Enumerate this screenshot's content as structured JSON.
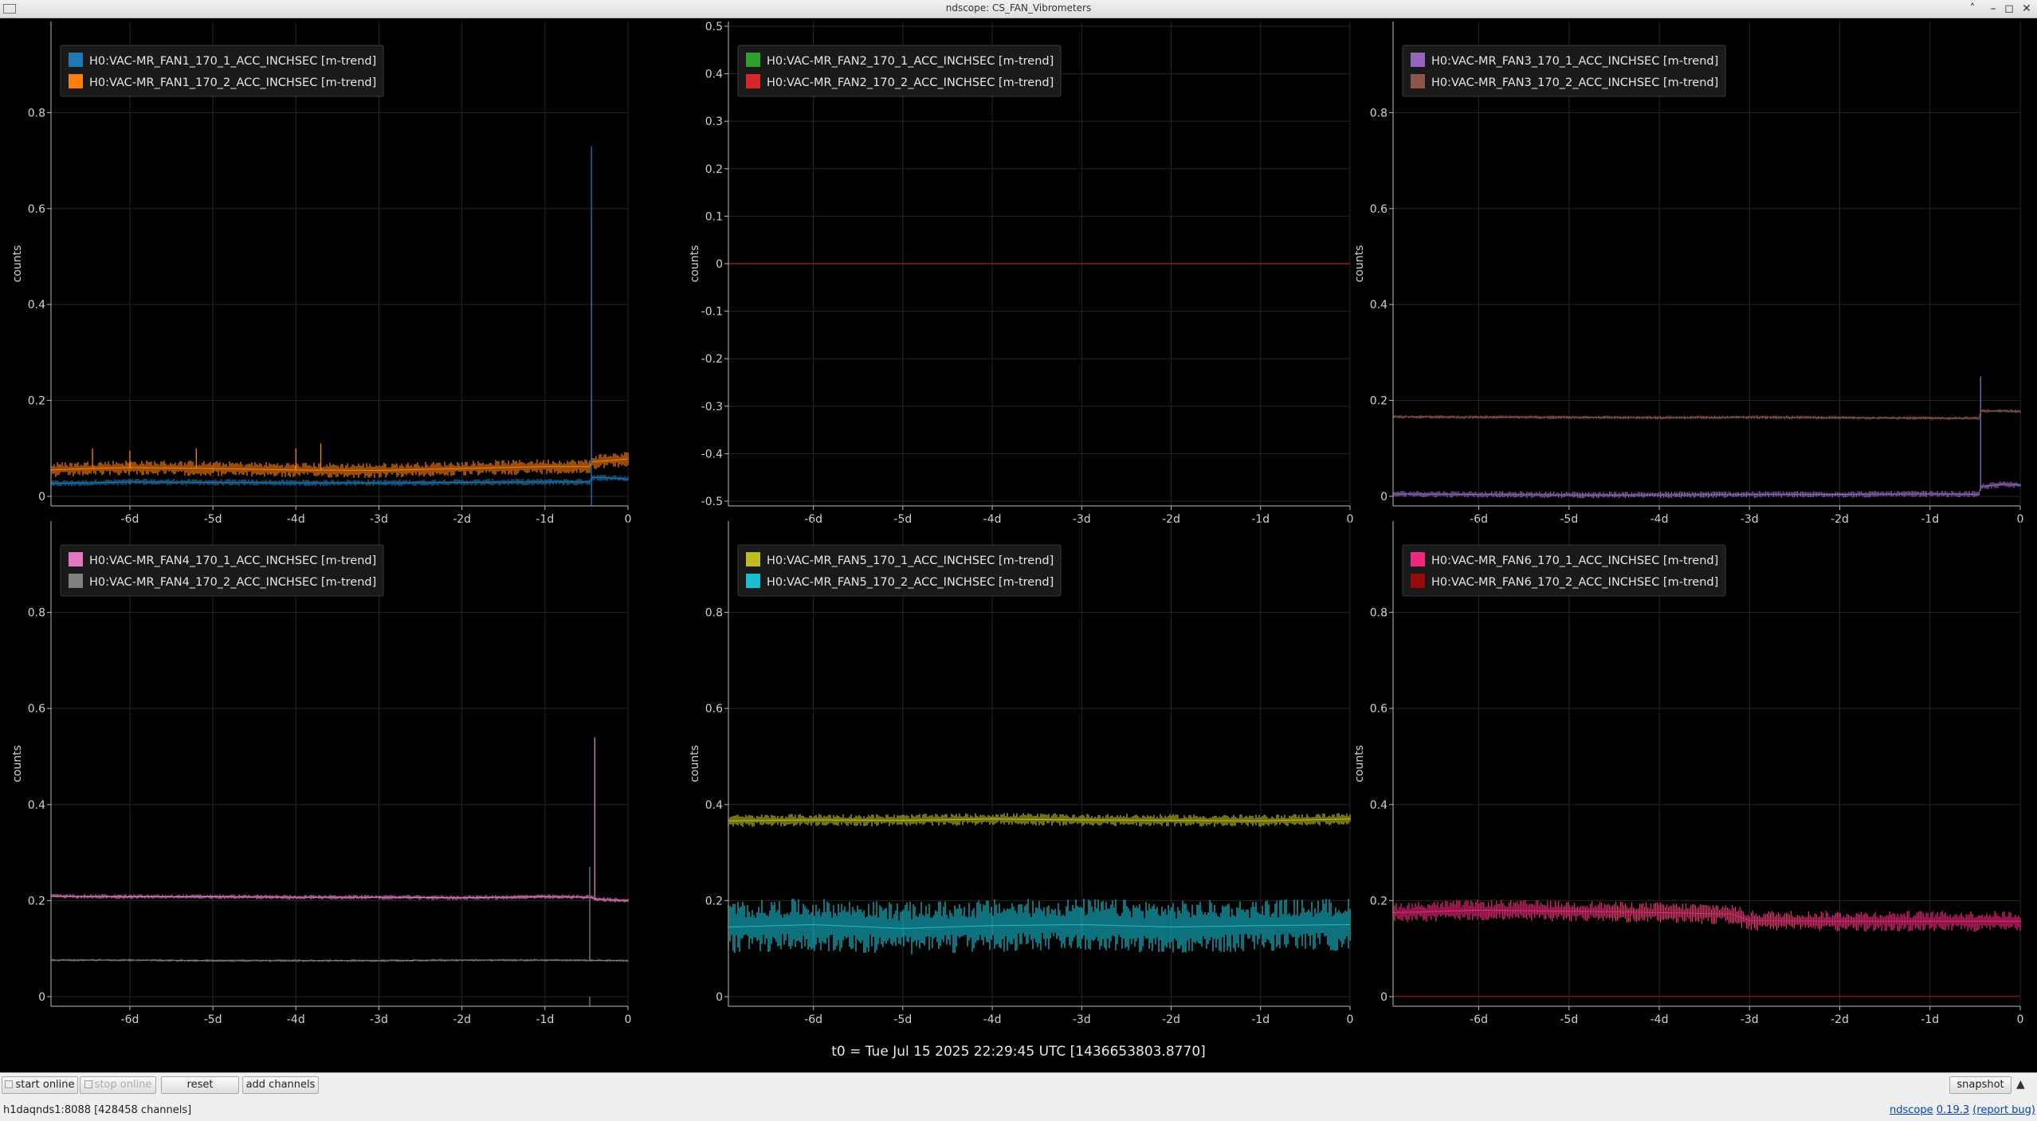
{
  "window": {
    "title": "ndscope: CS_FAN_Vibrometers"
  },
  "colors": {
    "background": "#000000",
    "grid": "#262626",
    "axis": "#bbbbbb"
  },
  "plots": [
    {
      "ylabel": "counts",
      "ylim": [
        -0.02,
        0.99
      ],
      "yticks": [
        0,
        0.2,
        0.4,
        0.6,
        0.8
      ],
      "yticklabels": [
        "0",
        "0.2",
        "0.4",
        "0.6",
        "0.8"
      ],
      "xlim": [
        -6.95,
        0
      ],
      "xticks": [
        -6,
        -5,
        -4,
        -3,
        -2,
        -1,
        0
      ],
      "xticklabels": [
        "-6d",
        "-5d",
        "-4d",
        "-3d",
        "-2d",
        "-1d",
        "0"
      ],
      "legend": [
        {
          "label": "H0:VAC-MR_FAN1_170_1_ACC_INCHSEC [m-trend]",
          "color": "#1f77b4"
        },
        {
          "label": "H0:VAC-MR_FAN1_170_2_ACC_INCHSEC [m-trend]",
          "color": "#ff7f0e"
        }
      ],
      "chart_data": {
        "type": "line",
        "series": [
          {
            "name": "H0:VAC-MR_FAN1_170_1_ACC_INCHSEC [m-trend]",
            "color": "#1f77b4",
            "x": [
              -6.95,
              -6.5,
              -6.0,
              -5.0,
              -4.0,
              -3.0,
              -2.0,
              -1.0,
              -0.45,
              -0.44,
              -0.2,
              0
            ],
            "y": [
              0.027,
              0.028,
              0.03,
              0.029,
              0.028,
              0.028,
              0.029,
              0.03,
              0.03,
              0.04,
              0.038,
              0.036
            ],
            "band": 0.007
          },
          {
            "name": "H0:VAC-MR_FAN1_170_2_ACC_INCHSEC [m-trend]",
            "color": "#ff7f0e",
            "x": [
              -6.95,
              -6.5,
              -6.0,
              -5.0,
              -4.0,
              -3.0,
              -2.0,
              -1.5,
              -1.0,
              -0.45,
              -0.44,
              -0.2,
              0
            ],
            "y": [
              0.055,
              0.058,
              0.06,
              0.058,
              0.055,
              0.054,
              0.058,
              0.06,
              0.062,
              0.062,
              0.072,
              0.075,
              0.078
            ],
            "band": 0.016,
            "spikes": [
              [
                -6.45,
                0.1
              ],
              [
                -6.0,
                0.095
              ],
              [
                -5.2,
                0.1
              ],
              [
                -4.0,
                0.1
              ],
              [
                -3.7,
                0.11
              ],
              [
                -0.44,
                0.58
              ]
            ]
          },
          {
            "name": "",
            "color": "#1f77b4",
            "x": [],
            "y": [],
            "band": 0,
            "spikes": [
              [
                -0.44,
                0.73
              ]
            ]
          }
        ]
      }
    },
    {
      "ylabel": "counts",
      "ylim": [
        -0.51,
        0.51
      ],
      "yticks": [
        -0.5,
        -0.4,
        -0.3,
        -0.2,
        -0.1,
        0,
        0.1,
        0.2,
        0.3,
        0.4,
        0.5
      ],
      "yticklabels": [
        "-0.5",
        "-0.4",
        "-0.3",
        "-0.2",
        "-0.1",
        "0",
        "0.1",
        "0.2",
        "0.3",
        "0.4",
        "0.5"
      ],
      "xlim": [
        -6.95,
        0
      ],
      "xticks": [
        -6,
        -5,
        -4,
        -3,
        -2,
        -1,
        0
      ],
      "xticklabels": [
        "-6d",
        "-5d",
        "-4d",
        "-3d",
        "-2d",
        "-1d",
        "0"
      ],
      "legend": [
        {
          "label": "H0:VAC-MR_FAN2_170_1_ACC_INCHSEC [m-trend]",
          "color": "#2ca02c"
        },
        {
          "label": "H0:VAC-MR_FAN2_170_2_ACC_INCHSEC [m-trend]",
          "color": "#d62728"
        }
      ],
      "chart_data": {
        "type": "line",
        "series": [
          {
            "name": "H0:VAC-MR_FAN2_170_1_ACC_INCHSEC [m-trend]",
            "color": "#2ca02c",
            "x": [
              -6.95,
              0
            ],
            "y": [
              0,
              0
            ],
            "band": 0
          },
          {
            "name": "H0:VAC-MR_FAN2_170_2_ACC_INCHSEC [m-trend]",
            "color": "#d62728",
            "x": [
              -6.95,
              0
            ],
            "y": [
              0,
              0
            ],
            "band": 0
          }
        ]
      }
    },
    {
      "ylabel": "counts",
      "ylim": [
        -0.02,
        0.99
      ],
      "yticks": [
        0,
        0.2,
        0.4,
        0.6,
        0.8
      ],
      "yticklabels": [
        "0",
        "0.2",
        "0.4",
        "0.6",
        "0.8"
      ],
      "xlim": [
        -6.95,
        0
      ],
      "xticks": [
        -6,
        -5,
        -4,
        -3,
        -2,
        -1,
        0
      ],
      "xticklabels": [
        "-6d",
        "-5d",
        "-4d",
        "-3d",
        "-2d",
        "-1d",
        "0"
      ],
      "legend": [
        {
          "label": "H0:VAC-MR_FAN3_170_1_ACC_INCHSEC [m-trend]",
          "color": "#9467bd"
        },
        {
          "label": "H0:VAC-MR_FAN3_170_2_ACC_INCHSEC [m-trend]",
          "color": "#8c564b"
        }
      ],
      "chart_data": {
        "type": "line",
        "series": [
          {
            "name": "H0:VAC-MR_FAN3_170_1_ACC_INCHSEC [m-trend]",
            "color": "#9467bd",
            "x": [
              -6.95,
              -6.0,
              -5.0,
              -4.0,
              -3.0,
              -2.0,
              -1.0,
              -0.45,
              -0.44,
              -0.2,
              0
            ],
            "y": [
              0.005,
              0.004,
              0.003,
              0.003,
              0.004,
              0.004,
              0.005,
              0.004,
              0.02,
              0.025,
              0.024
            ],
            "band": 0.007,
            "spikes": [
              [
                -0.44,
                0.25
              ]
            ]
          },
          {
            "name": "H0:VAC-MR_FAN3_170_2_ACC_INCHSEC [m-trend]",
            "color": "#8c564b",
            "x": [
              -6.95,
              -6.0,
              -5.0,
              -4.0,
              -3.0,
              -2.0,
              -1.0,
              -0.45,
              -0.44,
              -0.2,
              0
            ],
            "y": [
              0.166,
              0.165,
              0.165,
              0.164,
              0.165,
              0.164,
              0.163,
              0.163,
              0.178,
              0.178,
              0.177
            ],
            "band": 0.004
          }
        ]
      }
    },
    {
      "ylabel": "counts",
      "ylim": [
        -0.02,
        0.99
      ],
      "yticks": [
        0,
        0.2,
        0.4,
        0.6,
        0.8
      ],
      "yticklabels": [
        "0",
        "0.2",
        "0.4",
        "0.6",
        "0.8"
      ],
      "xlim": [
        -6.95,
        0
      ],
      "xticks": [
        -6,
        -5,
        -4,
        -3,
        -2,
        -1,
        0
      ],
      "xticklabels": [
        "-6d",
        "-5d",
        "-4d",
        "-3d",
        "-2d",
        "-1d",
        "0"
      ],
      "legend": [
        {
          "label": "H0:VAC-MR_FAN4_170_1_ACC_INCHSEC [m-trend]",
          "color": "#e377c2"
        },
        {
          "label": "H0:VAC-MR_FAN4_170_2_ACC_INCHSEC [m-trend]",
          "color": "#7f7f7f"
        }
      ],
      "chart_data": {
        "type": "line",
        "series": [
          {
            "name": "H0:VAC-MR_FAN4_170_1_ACC_INCHSEC [m-trend]",
            "color": "#e377c2",
            "x": [
              -6.95,
              -6.0,
              -5.0,
              -4.0,
              -3.0,
              -2.0,
              -1.0,
              -0.45,
              -0.4,
              0
            ],
            "y": [
              0.209,
              0.208,
              0.208,
              0.207,
              0.207,
              0.206,
              0.208,
              0.207,
              0.203,
              0.2
            ],
            "band": 0.005,
            "spikes": [
              [
                -0.4,
                0.54
              ]
            ]
          },
          {
            "name": "H0:VAC-MR_FAN4_170_2_ACC_INCHSEC [m-trend]",
            "color": "#7f7f7f",
            "x": [
              -6.95,
              -6.0,
              -5.0,
              -4.0,
              -3.0,
              -2.0,
              -1.0,
              0
            ],
            "y": [
              0.076,
              0.076,
              0.075,
              0.075,
              0.075,
              0.076,
              0.076,
              0.075
            ],
            "band": 0.003,
            "spikes": [
              [
                -0.46,
                0.27
              ]
            ]
          },
          {
            "name": "",
            "color": "#7f7f7f",
            "x": [],
            "y": [],
            "band": 0,
            "spikes": [
              [
                -0.46,
                0.0
              ]
            ]
          }
        ]
      }
    },
    {
      "ylabel": "counts",
      "ylim": [
        -0.02,
        0.99
      ],
      "yticks": [
        0,
        0.2,
        0.4,
        0.6,
        0.8
      ],
      "yticklabels": [
        "0",
        "0.2",
        "0.4",
        "0.6",
        "0.8"
      ],
      "xlim": [
        -6.95,
        0
      ],
      "xticks": [
        -6,
        -5,
        -4,
        -3,
        -2,
        -1,
        0
      ],
      "xticklabels": [
        "-6d",
        "-5d",
        "-4d",
        "-3d",
        "-2d",
        "-1d",
        "0"
      ],
      "legend": [
        {
          "label": "H0:VAC-MR_FAN5_170_1_ACC_INCHSEC [m-trend]",
          "color": "#bcbd22"
        },
        {
          "label": "H0:VAC-MR_FAN5_170_2_ACC_INCHSEC [m-trend]",
          "color": "#17becf"
        }
      ],
      "chart_data": {
        "type": "line",
        "series": [
          {
            "name": "H0:VAC-MR_FAN5_170_1_ACC_INCHSEC [m-trend]",
            "color": "#bcbd22",
            "x": [
              -6.95,
              -6.0,
              -5.0,
              -4.0,
              -3.0,
              -2.0,
              -1.0,
              0
            ],
            "y": [
              0.366,
              0.368,
              0.367,
              0.37,
              0.368,
              0.367,
              0.366,
              0.37
            ],
            "band": 0.013
          },
          {
            "name": "H0:VAC-MR_FAN5_170_2_ACC_INCHSEC [m-trend]",
            "color": "#17becf",
            "x": [
              -6.95,
              -6.0,
              -5.0,
              -4.0,
              -3.0,
              -2.0,
              -1.0,
              0
            ],
            "y": [
              0.145,
              0.15,
              0.142,
              0.148,
              0.15,
              0.145,
              0.148,
              0.15
            ],
            "band": 0.055
          }
        ]
      }
    },
    {
      "ylabel": "counts",
      "ylim": [
        -0.02,
        0.99
      ],
      "yticks": [
        0,
        0.2,
        0.4,
        0.6,
        0.8
      ],
      "yticklabels": [
        "0",
        "0.2",
        "0.4",
        "0.6",
        "0.8"
      ],
      "xlim": [
        -6.95,
        0
      ],
      "xticks": [
        -6,
        -5,
        -4,
        -3,
        -2,
        -1,
        0
      ],
      "xticklabels": [
        "-6d",
        "-5d",
        "-4d",
        "-3d",
        "-2d",
        "-1d",
        "0"
      ],
      "legend": [
        {
          "label": "H0:VAC-MR_FAN6_170_1_ACC_INCHSEC [m-trend]",
          "color": "#f0287d"
        },
        {
          "label": "H0:VAC-MR_FAN6_170_2_ACC_INCHSEC [m-trend]",
          "color": "#960a0a"
        }
      ],
      "chart_data": {
        "type": "line",
        "series": [
          {
            "name": "H0:VAC-MR_FAN6_170_1_ACC_INCHSEC [m-trend]",
            "color": "#f0287d",
            "x": [
              -6.95,
              -6.0,
              -5.0,
              -4.0,
              -3.5,
              -3.2,
              -3.0,
              -2.0,
              -1.0,
              0
            ],
            "y": [
              0.175,
              0.18,
              0.178,
              0.175,
              0.173,
              0.172,
              0.158,
              0.157,
              0.157,
              0.157
            ],
            "band": 0.022
          },
          {
            "name": "H0:VAC-MR_FAN6_170_2_ACC_INCHSEC [m-trend]",
            "color": "#960a0a",
            "x": [
              -6.95,
              0
            ],
            "y": [
              0.001,
              0.001
            ],
            "band": 0
          }
        ]
      }
    }
  ],
  "footer": {
    "t0": "t0 = Tue Jul 15 2025 22:29:45 UTC [1436653803.8770]"
  },
  "toolbar": {
    "start_online": "start online",
    "stop_online": "stop online",
    "reset": "reset",
    "add_channels": "add channels",
    "snapshot": "snapshot"
  },
  "status": {
    "server": "h1daqnds1:8088  [428458 channels]",
    "app_name": "ndscope",
    "version": "0.19.3",
    "report": "(report bug)"
  }
}
